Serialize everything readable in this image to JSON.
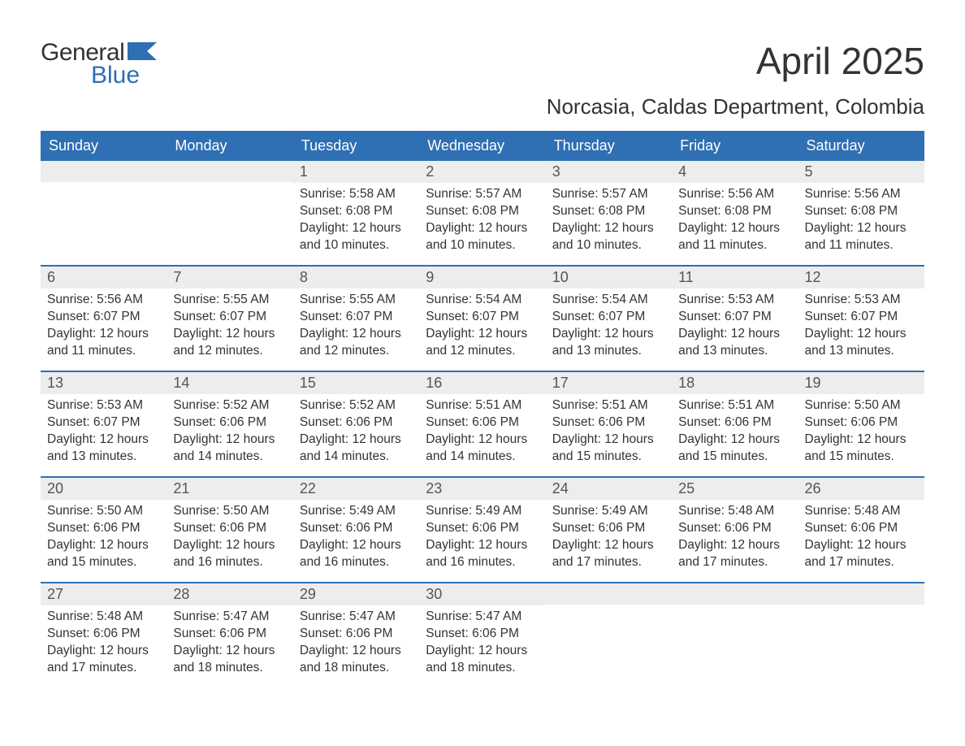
{
  "brand": {
    "general": "General",
    "blue": "Blue",
    "flag_color": "#2f6fb3"
  },
  "title": "April 2025",
  "subtitle": "Norcasia, Caldas Department, Colombia",
  "colors": {
    "header_bg": "#2f6fb3",
    "header_text": "#ffffff",
    "daynum_bg": "#ededed",
    "text": "#333333",
    "week_border": "#2f6fb3"
  },
  "day_headers": [
    "Sunday",
    "Monday",
    "Tuesday",
    "Wednesday",
    "Thursday",
    "Friday",
    "Saturday"
  ],
  "weeks": [
    [
      {
        "n": "",
        "lines": []
      },
      {
        "n": "",
        "lines": []
      },
      {
        "n": "1",
        "lines": [
          "Sunrise: 5:58 AM",
          "Sunset: 6:08 PM",
          "Daylight: 12 hours and 10 minutes."
        ]
      },
      {
        "n": "2",
        "lines": [
          "Sunrise: 5:57 AM",
          "Sunset: 6:08 PM",
          "Daylight: 12 hours and 10 minutes."
        ]
      },
      {
        "n": "3",
        "lines": [
          "Sunrise: 5:57 AM",
          "Sunset: 6:08 PM",
          "Daylight: 12 hours and 10 minutes."
        ]
      },
      {
        "n": "4",
        "lines": [
          "Sunrise: 5:56 AM",
          "Sunset: 6:08 PM",
          "Daylight: 12 hours and 11 minutes."
        ]
      },
      {
        "n": "5",
        "lines": [
          "Sunrise: 5:56 AM",
          "Sunset: 6:08 PM",
          "Daylight: 12 hours and 11 minutes."
        ]
      }
    ],
    [
      {
        "n": "6",
        "lines": [
          "Sunrise: 5:56 AM",
          "Sunset: 6:07 PM",
          "Daylight: 12 hours and 11 minutes."
        ]
      },
      {
        "n": "7",
        "lines": [
          "Sunrise: 5:55 AM",
          "Sunset: 6:07 PM",
          "Daylight: 12 hours and 12 minutes."
        ]
      },
      {
        "n": "8",
        "lines": [
          "Sunrise: 5:55 AM",
          "Sunset: 6:07 PM",
          "Daylight: 12 hours and 12 minutes."
        ]
      },
      {
        "n": "9",
        "lines": [
          "Sunrise: 5:54 AM",
          "Sunset: 6:07 PM",
          "Daylight: 12 hours and 12 minutes."
        ]
      },
      {
        "n": "10",
        "lines": [
          "Sunrise: 5:54 AM",
          "Sunset: 6:07 PM",
          "Daylight: 12 hours and 13 minutes."
        ]
      },
      {
        "n": "11",
        "lines": [
          "Sunrise: 5:53 AM",
          "Sunset: 6:07 PM",
          "Daylight: 12 hours and 13 minutes."
        ]
      },
      {
        "n": "12",
        "lines": [
          "Sunrise: 5:53 AM",
          "Sunset: 6:07 PM",
          "Daylight: 12 hours and 13 minutes."
        ]
      }
    ],
    [
      {
        "n": "13",
        "lines": [
          "Sunrise: 5:53 AM",
          "Sunset: 6:07 PM",
          "Daylight: 12 hours and 13 minutes."
        ]
      },
      {
        "n": "14",
        "lines": [
          "Sunrise: 5:52 AM",
          "Sunset: 6:06 PM",
          "Daylight: 12 hours and 14 minutes."
        ]
      },
      {
        "n": "15",
        "lines": [
          "Sunrise: 5:52 AM",
          "Sunset: 6:06 PM",
          "Daylight: 12 hours and 14 minutes."
        ]
      },
      {
        "n": "16",
        "lines": [
          "Sunrise: 5:51 AM",
          "Sunset: 6:06 PM",
          "Daylight: 12 hours and 14 minutes."
        ]
      },
      {
        "n": "17",
        "lines": [
          "Sunrise: 5:51 AM",
          "Sunset: 6:06 PM",
          "Daylight: 12 hours and 15 minutes."
        ]
      },
      {
        "n": "18",
        "lines": [
          "Sunrise: 5:51 AM",
          "Sunset: 6:06 PM",
          "Daylight: 12 hours and 15 minutes."
        ]
      },
      {
        "n": "19",
        "lines": [
          "Sunrise: 5:50 AM",
          "Sunset: 6:06 PM",
          "Daylight: 12 hours and 15 minutes."
        ]
      }
    ],
    [
      {
        "n": "20",
        "lines": [
          "Sunrise: 5:50 AM",
          "Sunset: 6:06 PM",
          "Daylight: 12 hours and 15 minutes."
        ]
      },
      {
        "n": "21",
        "lines": [
          "Sunrise: 5:50 AM",
          "Sunset: 6:06 PM",
          "Daylight: 12 hours and 16 minutes."
        ]
      },
      {
        "n": "22",
        "lines": [
          "Sunrise: 5:49 AM",
          "Sunset: 6:06 PM",
          "Daylight: 12 hours and 16 minutes."
        ]
      },
      {
        "n": "23",
        "lines": [
          "Sunrise: 5:49 AM",
          "Sunset: 6:06 PM",
          "Daylight: 12 hours and 16 minutes."
        ]
      },
      {
        "n": "24",
        "lines": [
          "Sunrise: 5:49 AM",
          "Sunset: 6:06 PM",
          "Daylight: 12 hours and 17 minutes."
        ]
      },
      {
        "n": "25",
        "lines": [
          "Sunrise: 5:48 AM",
          "Sunset: 6:06 PM",
          "Daylight: 12 hours and 17 minutes."
        ]
      },
      {
        "n": "26",
        "lines": [
          "Sunrise: 5:48 AM",
          "Sunset: 6:06 PM",
          "Daylight: 12 hours and 17 minutes."
        ]
      }
    ],
    [
      {
        "n": "27",
        "lines": [
          "Sunrise: 5:48 AM",
          "Sunset: 6:06 PM",
          "Daylight: 12 hours and 17 minutes."
        ]
      },
      {
        "n": "28",
        "lines": [
          "Sunrise: 5:47 AM",
          "Sunset: 6:06 PM",
          "Daylight: 12 hours and 18 minutes."
        ]
      },
      {
        "n": "29",
        "lines": [
          "Sunrise: 5:47 AM",
          "Sunset: 6:06 PM",
          "Daylight: 12 hours and 18 minutes."
        ]
      },
      {
        "n": "30",
        "lines": [
          "Sunrise: 5:47 AM",
          "Sunset: 6:06 PM",
          "Daylight: 12 hours and 18 minutes."
        ]
      },
      {
        "n": "",
        "lines": []
      },
      {
        "n": "",
        "lines": []
      },
      {
        "n": "",
        "lines": []
      }
    ]
  ]
}
